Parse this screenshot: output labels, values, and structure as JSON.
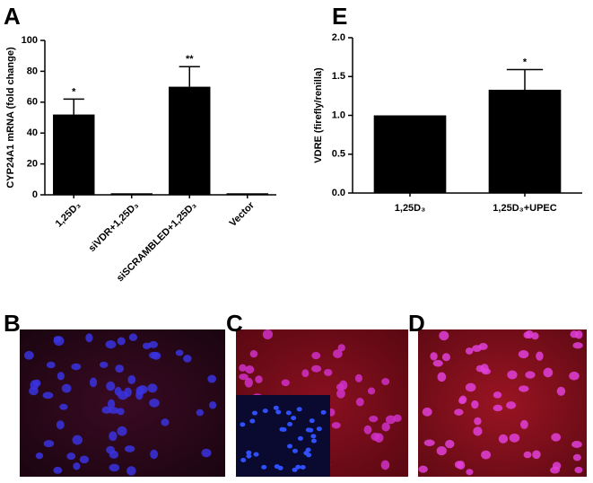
{
  "chart_data": [
    {
      "type": "bar",
      "panel_label": "A",
      "ylabel": "CYP24A1 mRNA (fold change)",
      "categories": [
        "1,25D₃",
        "siVDR+1,25D₃",
        "siSCRAMBLED+1,25D₃",
        "Vector"
      ],
      "values": [
        52,
        1,
        70,
        1
      ],
      "errors": [
        10,
        0,
        13,
        0
      ],
      "annotations": [
        "*",
        null,
        "**",
        null
      ],
      "color": "#000000",
      "ylim": [
        0,
        100
      ],
      "yticks": [
        0,
        20,
        40,
        60,
        80,
        100
      ]
    },
    {
      "type": "bar",
      "panel_label": "E",
      "ylabel": "VDRE (firefly/renilla)",
      "categories": [
        "1,25D₃",
        "1,25D₃+UPEC"
      ],
      "values": [
        1.0,
        1.33
      ],
      "errors": [
        0,
        0.26
      ],
      "annotations": [
        null,
        "*"
      ],
      "color": "#000000",
      "ylim": [
        0,
        2
      ],
      "yticks": [
        {
          "value": 0,
          "label": "0.0"
        },
        0.5,
        {
          "value": 1,
          "label": "1.0"
        },
        1.5,
        {
          "value": 2,
          "label": "2.0"
        }
      ]
    }
  ],
  "panels": [
    "B",
    "C",
    "D"
  ]
}
